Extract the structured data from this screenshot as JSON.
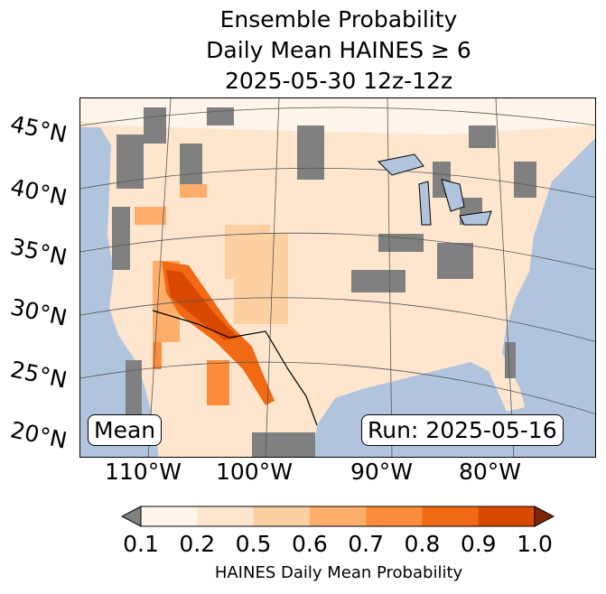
{
  "title": {
    "line1": "Ensemble Probability",
    "line2": "Daily Mean HAINES ≥ 6",
    "line3": "2025-05-30 12z-12z"
  },
  "map": {
    "lat_labels": [
      "45°N",
      "40°N",
      "35°N",
      "30°N",
      "25°N",
      "20°N"
    ],
    "lon_labels": [
      "110°W",
      "100°W",
      "90°W",
      "80°W"
    ],
    "mean_label": "Mean",
    "run_label": "Run: 2025-05-16",
    "colors": {
      "ocean": "#b0c4de",
      "land": "#fff5eb",
      "missing": "#808080"
    }
  },
  "colorbar": {
    "ticks": [
      "0.1",
      "0.2",
      "0.5",
      "0.6",
      "0.7",
      "0.8",
      "0.9",
      "1.0"
    ],
    "colors": [
      "#fff5eb",
      "#fee6ce",
      "#fdd0a2",
      "#fdae6b",
      "#fd8d3c",
      "#f16913",
      "#d94801"
    ],
    "under_color": "#808080",
    "over_color": "#7f2704",
    "label": "HAINES Daily Mean Probability"
  }
}
